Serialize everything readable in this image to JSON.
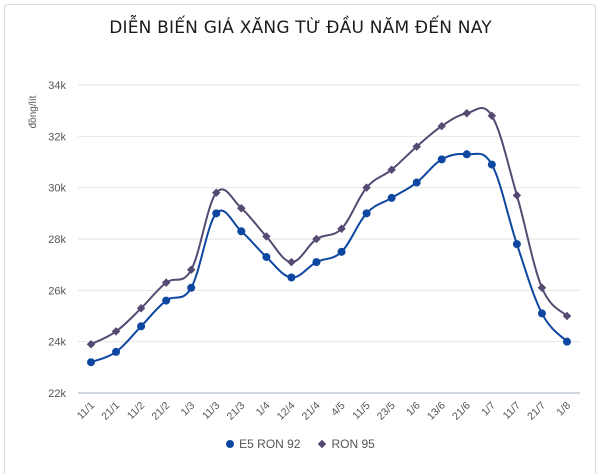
{
  "chart_data": {
    "type": "line",
    "title": "DIỄN BIẾN GIÁ XĂNG TỪ ĐẦU NĂM ĐẾN NAY",
    "xlabel": "",
    "ylabel": "đồng/lít",
    "ylim": [
      22000,
      34000
    ],
    "yticks": [
      22000,
      24000,
      26000,
      28000,
      30000,
      32000,
      34000
    ],
    "ytick_labels": [
      "22k",
      "24k",
      "26k",
      "28k",
      "30k",
      "32k",
      "34k"
    ],
    "grid": true,
    "legend_position": "bottom",
    "categories": [
      "11/1",
      "21/1",
      "11/2",
      "21/2",
      "1/3",
      "11/3",
      "21/3",
      "1/4",
      "12/4",
      "21/4",
      "4/5",
      "11/5",
      "23/5",
      "1/6",
      "13/6",
      "21/6",
      "1/7",
      "11/7",
      "21/7",
      "1/8"
    ],
    "series": [
      {
        "name": "E5 RON 92",
        "color": "#0d47a1",
        "marker": "circle",
        "values": [
          23200,
          23600,
          24600,
          25600,
          26100,
          29000,
          28300,
          27300,
          26500,
          27100,
          27500,
          29000,
          29600,
          30200,
          31100,
          31300,
          30900,
          27800,
          25100,
          24000
        ]
      },
      {
        "name": "RON 95",
        "color": "#564a72",
        "marker": "diamond",
        "values": [
          23900,
          24400,
          25300,
          26300,
          26800,
          29800,
          29200,
          28100,
          27100,
          28000,
          28400,
          30000,
          30700,
          31600,
          32400,
          32900,
          32800,
          29700,
          26100,
          25000
        ]
      }
    ]
  },
  "legend": {
    "items": [
      {
        "label": "E5 RON 92"
      },
      {
        "label": "RON 95"
      }
    ]
  }
}
